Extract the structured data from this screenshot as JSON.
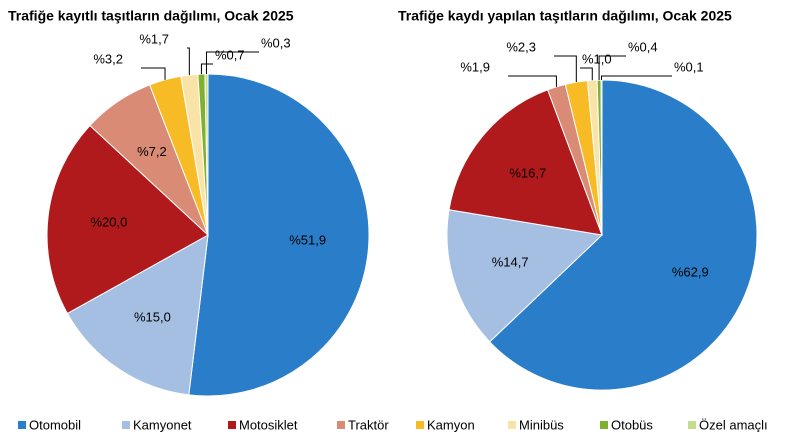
{
  "chart_data": [
    {
      "type": "pie",
      "title": "Trafiğe kayıtlı taşıtların dağılımı, Ocak 2025",
      "categories": [
        "Otomobil",
        "Kamyonet",
        "Motosiklet",
        "Traktör",
        "Kamyon",
        "Minibüs",
        "Otobüs",
        "Özel amaçlı"
      ],
      "values": [
        51.9,
        15.0,
        20.0,
        7.2,
        3.2,
        1.7,
        0.7,
        0.3
      ],
      "value_labels": [
        "%51,9",
        "%15,0",
        "%20,0",
        "%7,2",
        "%3,2",
        "%1,7",
        "%0,7",
        "%0,3"
      ],
      "colors": [
        "#2a7dc9",
        "#a5bfe3",
        "#b01a1d",
        "#d98b76",
        "#f7bb25",
        "#f9e3a6",
        "#7fb02e",
        "#c5dc8e"
      ]
    },
    {
      "type": "pie",
      "title": "Trafiğe kaydı yapılan taşıtların dağılımı, Ocak 2025",
      "categories": [
        "Otomobil",
        "Kamyonet",
        "Motosiklet",
        "Traktör",
        "Kamyon",
        "Minibüs",
        "Otobüs",
        "Özel amaçlı"
      ],
      "values": [
        62.9,
        14.7,
        16.7,
        1.9,
        2.3,
        1.0,
        0.4,
        0.1
      ],
      "value_labels": [
        "%62,9",
        "%14,7",
        "%16,7",
        "%1,9",
        "%2,3",
        "%1,0",
        "%0,4",
        "%0,1"
      ],
      "colors": [
        "#2a7dc9",
        "#a5bfe3",
        "#b01a1d",
        "#d98b76",
        "#f7bb25",
        "#f9e3a6",
        "#7fb02e",
        "#c5dc8e"
      ]
    }
  ]
}
